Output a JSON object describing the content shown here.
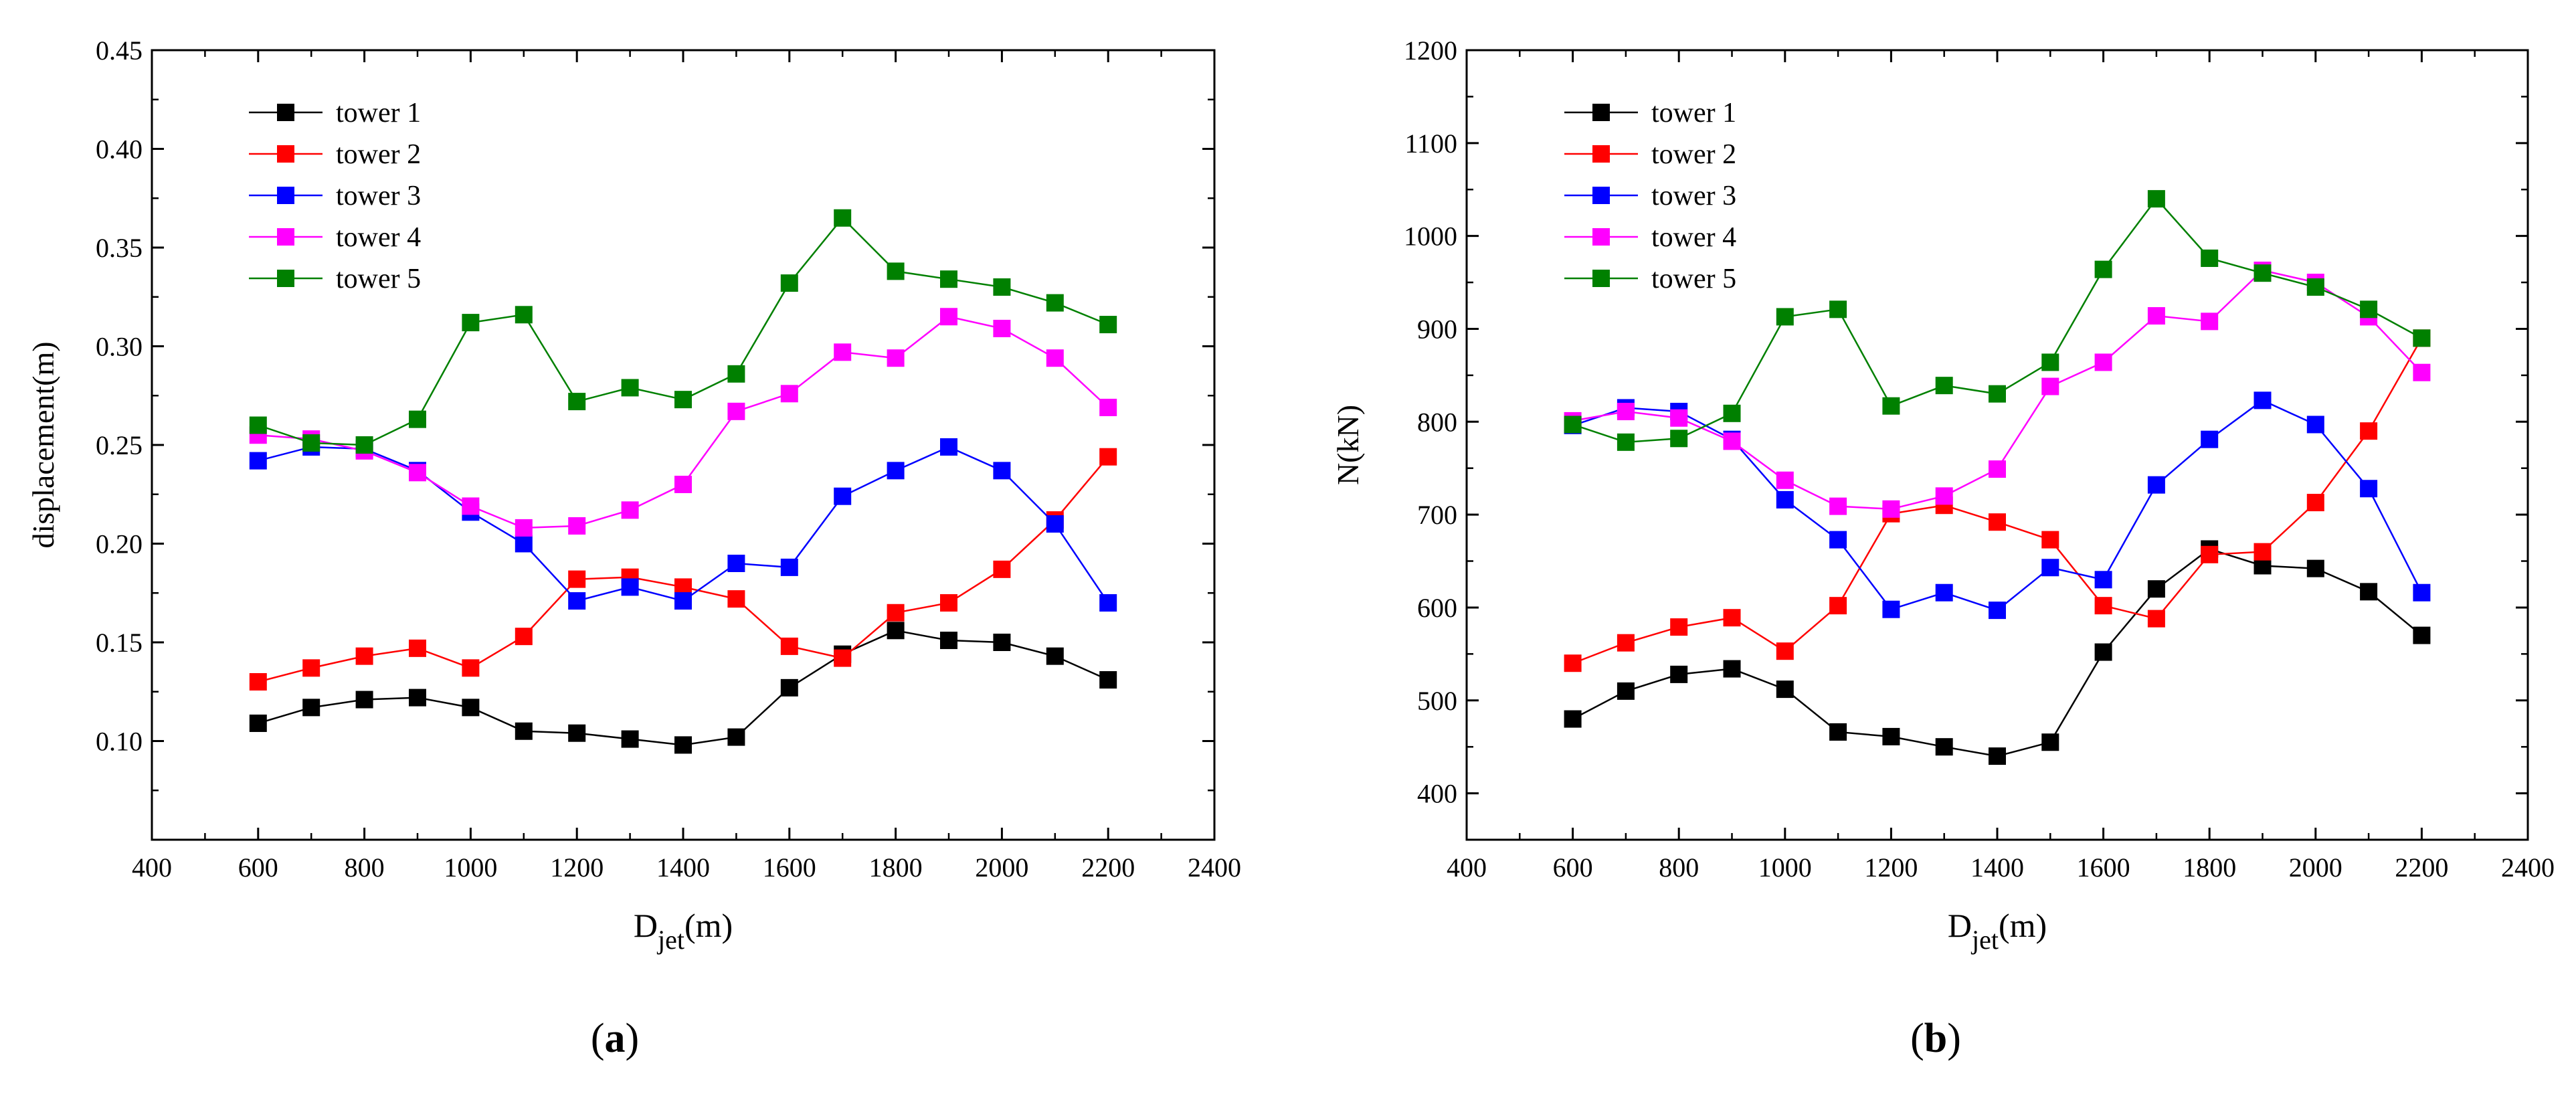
{
  "chart_data": [
    {
      "type": "line",
      "panel_label": "(a)",
      "panel_letter": "a",
      "xlabel_main": "D",
      "xlabel_sub": "jet",
      "xlabel_unit": "(m)",
      "ylabel": "displacement(m)",
      "xlim": [
        400,
        2400
      ],
      "ylim": [
        0.05,
        0.45
      ],
      "xticks": [
        400,
        600,
        800,
        1000,
        1200,
        1400,
        1600,
        1800,
        2000,
        2200,
        2400
      ],
      "yticks": [
        "0.10",
        "0.15",
        "0.20",
        "0.25",
        "0.30",
        "0.35",
        "0.40",
        "0.45"
      ],
      "legend_position": "top-left",
      "x": [
        600,
        700,
        800,
        900,
        1000,
        1100,
        1200,
        1300,
        1400,
        1500,
        1600,
        1700,
        1800,
        1900,
        2000,
        2100,
        2200
      ],
      "series": [
        {
          "name": "tower 1",
          "color": "#000000",
          "values": [
            0.109,
            0.117,
            0.121,
            0.122,
            0.117,
            0.105,
            0.104,
            0.101,
            0.098,
            0.102,
            0.127,
            0.144,
            0.156,
            0.151,
            0.15,
            0.143,
            0.131
          ]
        },
        {
          "name": "tower 2",
          "color": "#ff0000",
          "values": [
            0.13,
            0.137,
            0.143,
            0.147,
            0.137,
            0.153,
            0.182,
            0.183,
            0.178,
            0.172,
            0.148,
            0.142,
            0.165,
            0.17,
            0.187,
            0.212,
            0.244
          ]
        },
        {
          "name": "tower 3",
          "color": "#0000ff",
          "values": [
            0.242,
            0.249,
            0.248,
            0.237,
            0.216,
            0.2,
            0.171,
            0.178,
            0.171,
            0.19,
            0.188,
            0.224,
            0.237,
            0.249,
            0.237,
            0.21,
            0.17
          ]
        },
        {
          "name": "tower 4",
          "color": "#ff00ff",
          "values": [
            0.255,
            0.253,
            0.247,
            0.236,
            0.219,
            0.208,
            0.209,
            0.217,
            0.23,
            0.267,
            0.276,
            0.297,
            0.294,
            0.315,
            0.309,
            0.294,
            0.269
          ]
        },
        {
          "name": "tower 5",
          "color": "#008000",
          "values": [
            0.26,
            0.251,
            0.25,
            0.263,
            0.312,
            0.316,
            0.272,
            0.279,
            0.273,
            0.286,
            0.332,
            0.365,
            0.338,
            0.334,
            0.33,
            0.322,
            0.311
          ]
        }
      ]
    },
    {
      "type": "line",
      "panel_label": "(b)",
      "panel_letter": "b",
      "xlabel_main": "D",
      "xlabel_sub": "jet",
      "xlabel_unit": "(m)",
      "ylabel": "N(kN)",
      "xlim": [
        400,
        2400
      ],
      "ylim": [
        350,
        1200
      ],
      "xticks": [
        400,
        600,
        800,
        1000,
        1200,
        1400,
        1600,
        1800,
        2000,
        2200,
        2400
      ],
      "yticks": [
        "400",
        "500",
        "600",
        "700",
        "800",
        "900",
        "1000",
        "1100",
        "1200"
      ],
      "legend_position": "top-left",
      "x": [
        600,
        700,
        800,
        900,
        1000,
        1100,
        1200,
        1300,
        1400,
        1500,
        1600,
        1700,
        1800,
        1900,
        2000,
        2100,
        2200
      ],
      "series": [
        {
          "name": "tower 1",
          "color": "#000000",
          "values": [
            480,
            510,
            528,
            534,
            512,
            466,
            461,
            450,
            440,
            455,
            552,
            620,
            663,
            645,
            642,
            617,
            570
          ]
        },
        {
          "name": "tower 2",
          "color": "#ff0000",
          "values": [
            540,
            562,
            579,
            589,
            553,
            602,
            701,
            710,
            692,
            673,
            602,
            588,
            657,
            660,
            713,
            790,
            890
          ]
        },
        {
          "name": "tower 3",
          "color": "#0000ff",
          "values": [
            796,
            815,
            811,
            781,
            716,
            673,
            598,
            616,
            597,
            643,
            630,
            732,
            781,
            823,
            797,
            728,
            616
          ]
        },
        {
          "name": "tower 4",
          "color": "#ff00ff",
          "values": [
            801,
            811,
            804,
            779,
            737,
            709,
            706,
            720,
            749,
            838,
            864,
            914,
            908,
            963,
            950,
            913,
            853
          ]
        },
        {
          "name": "tower 5",
          "color": "#008000",
          "values": [
            797,
            778,
            782,
            809,
            913,
            921,
            817,
            839,
            830,
            864,
            964,
            1040,
            976,
            960,
            945,
            921,
            890
          ]
        }
      ]
    }
  ]
}
